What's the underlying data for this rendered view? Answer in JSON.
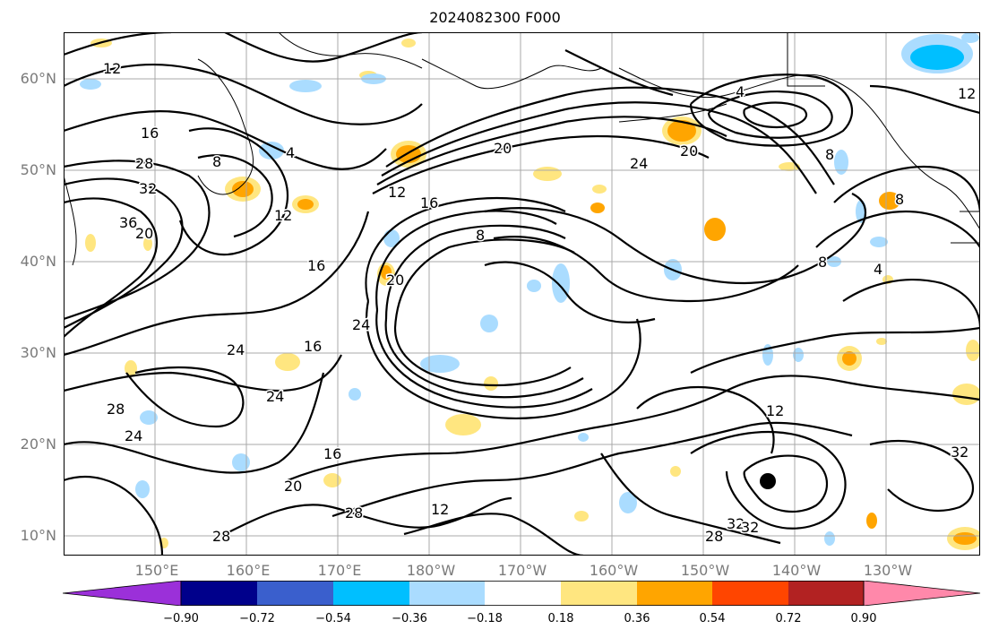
{
  "title": "2024082300 F000",
  "lat_labels": [
    "60°N",
    "50°N",
    "40°N",
    "30°N",
    "20°N",
    "10°N"
  ],
  "lon_labels": [
    "150°E",
    "160°E",
    "170°E",
    "180°W",
    "170°W",
    "160°W",
    "150°W",
    "140°W",
    "130°W"
  ],
  "colorbar": {
    "ticks": [
      "−0.90",
      "−0.72",
      "−0.54",
      "−0.36",
      "−0.18",
      "0.18",
      "0.36",
      "0.54",
      "0.72",
      "0.90"
    ],
    "colors": [
      "#9b30d9",
      "#00008b",
      "#3a5fcd",
      "#00bfff",
      "#aadcff",
      "#ffffff",
      "#ffe680",
      "#ffa500",
      "#ff4500",
      "#b22222",
      "#ff88aa"
    ]
  },
  "contour_labels": [
    "12",
    "16",
    "28",
    "32",
    "36",
    "20",
    "8",
    "4",
    "12",
    "20",
    "24",
    "20",
    "16",
    "8",
    "16",
    "20",
    "24",
    "24",
    "16",
    "24",
    "28",
    "24",
    "16",
    "20",
    "12",
    "28",
    "28",
    "32",
    "28",
    "32",
    "12",
    "4",
    "8",
    "4",
    "8",
    "8",
    "32",
    "12",
    "12"
  ],
  "colors": {
    "contour": "#000000",
    "grid": "#a8a8a8",
    "coast": "#000000",
    "marker": "#000000"
  }
}
